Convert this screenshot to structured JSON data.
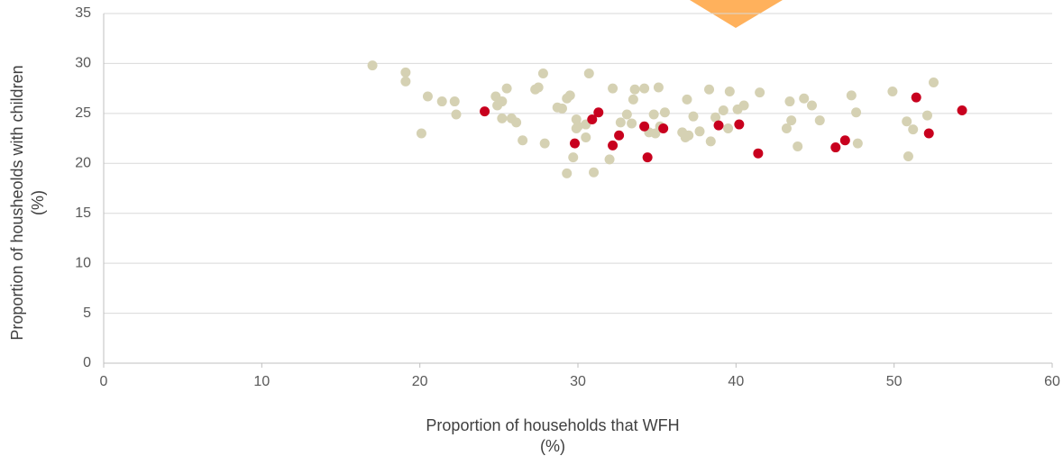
{
  "chart_data": {
    "type": "scatter",
    "xlabel": [
      "Proportion of households that WFH",
      "(%)"
    ],
    "ylabel": [
      "Proportion of housheolds with children",
      "(%)"
    ],
    "xlim": [
      0,
      60
    ],
    "xticks": [
      0,
      10,
      20,
      30,
      40,
      50,
      60
    ],
    "ylim": [
      0,
      35
    ],
    "yticks": [
      0,
      5,
      10,
      15,
      20,
      25,
      30,
      35
    ],
    "grid": true,
    "series": [
      {
        "color": "#d5d1b3",
        "x": [
          17.0,
          19.1,
          19.1,
          20.1,
          20.5,
          21.4,
          22.2,
          22.3,
          24.8,
          24.9,
          25.2,
          25.5,
          25.2,
          25.8,
          26.1,
          26.5,
          27.3,
          27.5,
          27.8,
          27.9,
          28.7,
          29.0,
          29.3,
          29.5,
          29.3,
          29.7,
          29.9,
          30.0,
          29.9,
          30.5,
          30.5,
          30.7,
          31.0,
          32.0,
          32.2,
          32.7,
          33.1,
          33.4,
          33.5,
          33.6,
          34.2,
          34.5,
          34.8,
          34.9,
          35.1,
          35.2,
          35.5,
          36.6,
          36.8,
          37.0,
          36.9,
          37.3,
          37.7,
          38.3,
          38.4,
          38.7,
          39.2,
          39.5,
          39.6,
          40.1,
          40.5,
          41.5,
          43.2,
          43.4,
          43.5,
          43.9,
          44.3,
          44.8,
          45.3,
          47.3,
          47.6,
          47.7,
          49.9,
          50.8,
          50.9,
          51.2,
          52.1,
          52.5
        ],
        "values": [
          29.8,
          29.1,
          28.2,
          23.0,
          26.7,
          26.2,
          26.2,
          24.9,
          26.7,
          25.8,
          26.2,
          27.5,
          24.5,
          24.5,
          24.1,
          22.3,
          27.4,
          27.6,
          29.0,
          22.0,
          25.6,
          25.5,
          26.5,
          26.8,
          19.0,
          20.6,
          24.4,
          23.7,
          23.5,
          23.9,
          22.6,
          29.0,
          19.1,
          20.4,
          27.5,
          24.1,
          24.9,
          24.0,
          26.4,
          27.4,
          27.5,
          23.1,
          24.9,
          23.0,
          27.6,
          23.7,
          25.1,
          23.1,
          22.6,
          22.8,
          26.4,
          24.7,
          23.2,
          27.4,
          22.2,
          24.6,
          25.3,
          23.5,
          27.2,
          25.4,
          25.8,
          27.1,
          23.5,
          26.2,
          24.3,
          21.7,
          26.5,
          25.8,
          24.3,
          26.8,
          25.1,
          22.0,
          27.2,
          24.2,
          20.7,
          23.4,
          24.8,
          28.1
        ]
      },
      {
        "color": "#c8001e",
        "x": [
          24.1,
          29.8,
          30.9,
          31.3,
          32.2,
          32.6,
          34.2,
          34.4,
          35.4,
          38.9,
          40.2,
          41.4,
          46.3,
          46.9,
          51.4,
          52.2,
          54.3
        ],
        "values": [
          25.2,
          22.0,
          24.4,
          25.1,
          21.8,
          22.8,
          23.7,
          20.6,
          23.5,
          23.8,
          23.9,
          21.0,
          21.6,
          22.3,
          26.6,
          23.0,
          25.3
        ]
      }
    ]
  }
}
